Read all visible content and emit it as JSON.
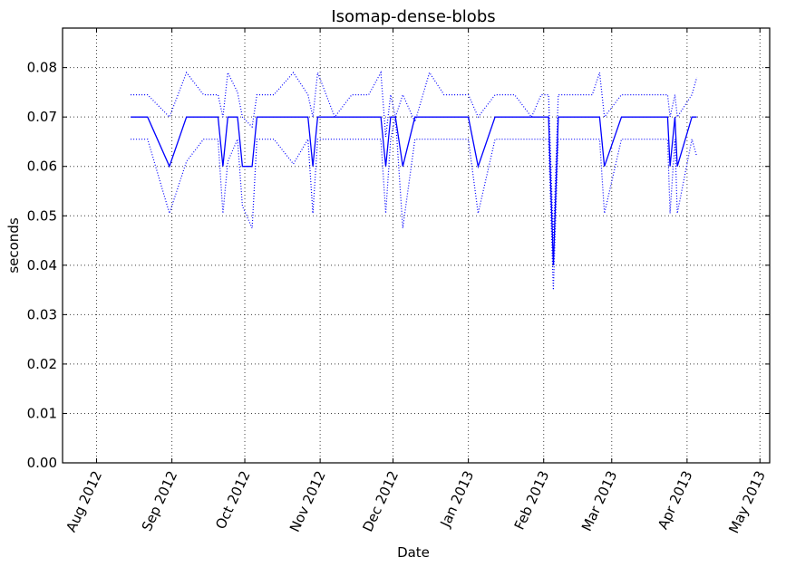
{
  "chart_data": {
    "type": "line",
    "title": "Isomap-dense-blobs",
    "xlabel": "Date",
    "ylabel": "seconds",
    "xlim": [
      "2012-07-18",
      "2013-05-05"
    ],
    "ylim": [
      0,
      0.088
    ],
    "grid": true,
    "line_color": "#0000ff",
    "x_ticks": [
      {
        "date": "2012-08-01",
        "label": "Aug 2012"
      },
      {
        "date": "2012-09-01",
        "label": "Sep 2012"
      },
      {
        "date": "2012-10-01",
        "label": "Oct 2012"
      },
      {
        "date": "2012-11-01",
        "label": "Nov 2012"
      },
      {
        "date": "2012-12-01",
        "label": "Dec 2012"
      },
      {
        "date": "2013-01-01",
        "label": "Jan 2013"
      },
      {
        "date": "2013-02-01",
        "label": "Feb 2013"
      },
      {
        "date": "2013-03-01",
        "label": "Mar 2013"
      },
      {
        "date": "2013-04-01",
        "label": "Apr 2013"
      },
      {
        "date": "2013-05-01",
        "label": "May 2013"
      }
    ],
    "y_ticks": [
      {
        "value": 0.0,
        "label": "0.00"
      },
      {
        "value": 0.01,
        "label": "0.01"
      },
      {
        "value": 0.02,
        "label": "0.02"
      },
      {
        "value": 0.03,
        "label": "0.03"
      },
      {
        "value": 0.04,
        "label": "0.04"
      },
      {
        "value": 0.05,
        "label": "0.05"
      },
      {
        "value": 0.06,
        "label": "0.06"
      },
      {
        "value": 0.07,
        "label": "0.07"
      },
      {
        "value": 0.08,
        "label": "0.08"
      }
    ],
    "x": [
      "2012-08-15",
      "2012-08-22",
      "2012-08-31",
      "2012-09-07",
      "2012-09-14",
      "2012-09-20",
      "2012-09-22",
      "2012-09-24",
      "2012-09-28",
      "2012-09-30",
      "2012-10-04",
      "2012-10-06",
      "2012-10-13",
      "2012-10-21",
      "2012-10-27",
      "2012-10-29",
      "2012-10-31",
      "2012-11-07",
      "2012-11-14",
      "2012-11-21",
      "2012-11-26",
      "2012-11-28",
      "2012-11-30",
      "2012-12-02",
      "2012-12-05",
      "2012-12-10",
      "2012-12-16",
      "2012-12-22",
      "2012-12-28",
      "2013-01-01",
      "2013-01-05",
      "2013-01-12",
      "2013-01-20",
      "2013-01-27",
      "2013-01-31",
      "2013-02-03",
      "2013-02-05",
      "2013-02-07",
      "2013-02-14",
      "2013-02-21",
      "2013-02-24",
      "2013-02-26",
      "2013-03-05",
      "2013-03-12",
      "2013-03-18",
      "2013-03-22",
      "2013-03-24",
      "2013-03-25",
      "2013-03-27",
      "2013-03-28",
      "2013-04-03",
      "2013-04-05"
    ],
    "series": [
      {
        "style": "solid",
        "values": [
          0.07,
          0.07,
          0.06,
          0.07,
          0.07,
          0.07,
          0.06,
          0.07,
          0.07,
          0.06,
          0.06,
          0.07,
          0.07,
          0.07,
          0.07,
          0.06,
          0.07,
          0.07,
          0.07,
          0.07,
          0.07,
          0.06,
          0.07,
          0.07,
          0.06,
          0.07,
          0.07,
          0.07,
          0.07,
          0.07,
          0.06,
          0.07,
          0.07,
          0.07,
          0.07,
          0.07,
          0.04,
          0.07,
          0.07,
          0.07,
          0.07,
          0.06,
          0.07,
          0.07,
          0.07,
          0.07,
          0.07,
          0.06,
          0.07,
          0.06,
          0.07,
          0.07
        ]
      },
      {
        "style": "dotted",
        "values": [
          0.0745,
          0.0745,
          0.07,
          0.079,
          0.0745,
          0.0745,
          0.07,
          0.079,
          0.075,
          0.07,
          0.068,
          0.0745,
          0.0745,
          0.079,
          0.0745,
          0.07,
          0.079,
          0.07,
          0.0745,
          0.0745,
          0.079,
          0.066,
          0.0745,
          0.07,
          0.0745,
          0.069,
          0.079,
          0.0745,
          0.0745,
          0.0745,
          0.07,
          0.0745,
          0.0745,
          0.07,
          0.0745,
          0.0745,
          0.045,
          0.0745,
          0.0745,
          0.0745,
          0.079,
          0.07,
          0.0745,
          0.0745,
          0.0745,
          0.0745,
          0.0745,
          0.07,
          0.0745,
          0.07,
          0.0745,
          0.078
        ]
      },
      {
        "style": "dotted",
        "values": [
          0.0655,
          0.0655,
          0.0505,
          0.061,
          0.0655,
          0.0655,
          0.0505,
          0.061,
          0.0655,
          0.052,
          0.0475,
          0.0655,
          0.0655,
          0.0605,
          0.0655,
          0.0505,
          0.0655,
          0.0655,
          0.0655,
          0.0655,
          0.0655,
          0.0505,
          0.0655,
          0.07,
          0.0475,
          0.0655,
          0.0655,
          0.0655,
          0.0655,
          0.0655,
          0.0505,
          0.0655,
          0.0655,
          0.0655,
          0.0655,
          0.0655,
          0.035,
          0.0655,
          0.0655,
          0.0655,
          0.0655,
          0.0505,
          0.0655,
          0.0655,
          0.0655,
          0.0655,
          0.0655,
          0.0505,
          0.0655,
          0.0505,
          0.0655,
          0.062
        ]
      }
    ]
  }
}
